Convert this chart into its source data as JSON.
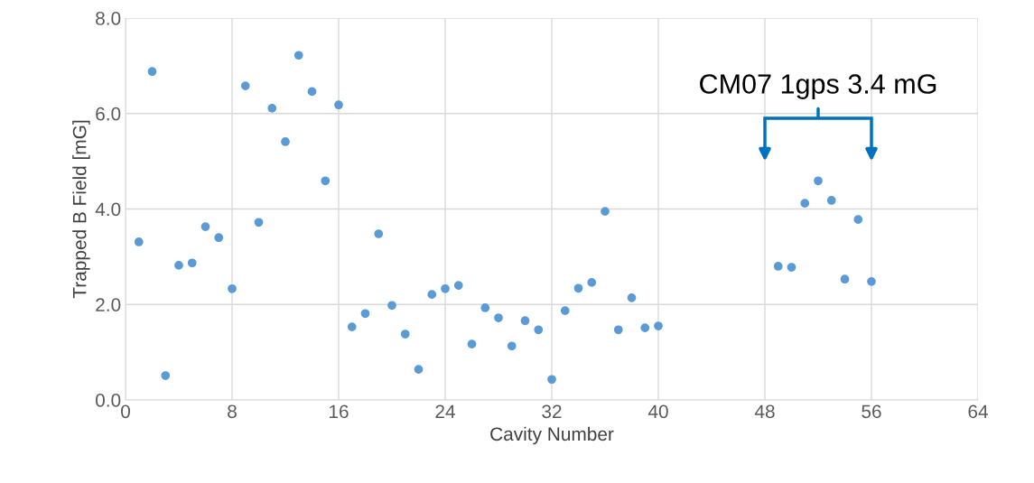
{
  "chart_data": {
    "type": "scatter",
    "xlabel": "Cavity Number",
    "ylabel": "Trapped B Field [mG]",
    "x": [
      1,
      2,
      3,
      4,
      5,
      6,
      7,
      8,
      9,
      10,
      11,
      12,
      13,
      14,
      15,
      16,
      17,
      18,
      19,
      20,
      21,
      22,
      23,
      24,
      25,
      26,
      27,
      28,
      29,
      30,
      31,
      32,
      33,
      34,
      35,
      36,
      37,
      38,
      39,
      40,
      49,
      50,
      51,
      52,
      53,
      54,
      55,
      56
    ],
    "series": [
      {
        "color": "#5b9bd5",
        "values": [
          3.31,
          6.88,
          0.51,
          2.82,
          2.87,
          3.63,
          3.4,
          2.33,
          6.58,
          3.72,
          6.11,
          5.41,
          7.22,
          6.46,
          4.59,
          6.18,
          1.53,
          1.81,
          3.48,
          1.98,
          1.38,
          0.64,
          2.21,
          2.33,
          2.4,
          1.17,
          1.93,
          1.72,
          1.13,
          1.66,
          1.47,
          0.43,
          1.87,
          2.34,
          2.46,
          3.95,
          1.47,
          2.14,
          1.51,
          1.55,
          2.8,
          2.78,
          4.12,
          4.59,
          4.18,
          2.53,
          3.78,
          2.48
        ]
      }
    ],
    "xlim": [
      0,
      64
    ],
    "xticks": [
      0,
      8,
      16,
      24,
      32,
      40,
      48,
      56,
      64
    ],
    "ylim": [
      0,
      8
    ],
    "yticks": [
      {
        "value": 0,
        "label": "0.0"
      },
      {
        "value": 2,
        "label": "2.0"
      },
      {
        "value": 4,
        "label": "4.0"
      },
      {
        "value": 6,
        "label": "6.0"
      },
      {
        "value": 8,
        "label": "8.0"
      }
    ],
    "grid": true,
    "marker": "circle",
    "annotations": [
      "CM07 1gps 3.4 mG"
    ]
  }
}
